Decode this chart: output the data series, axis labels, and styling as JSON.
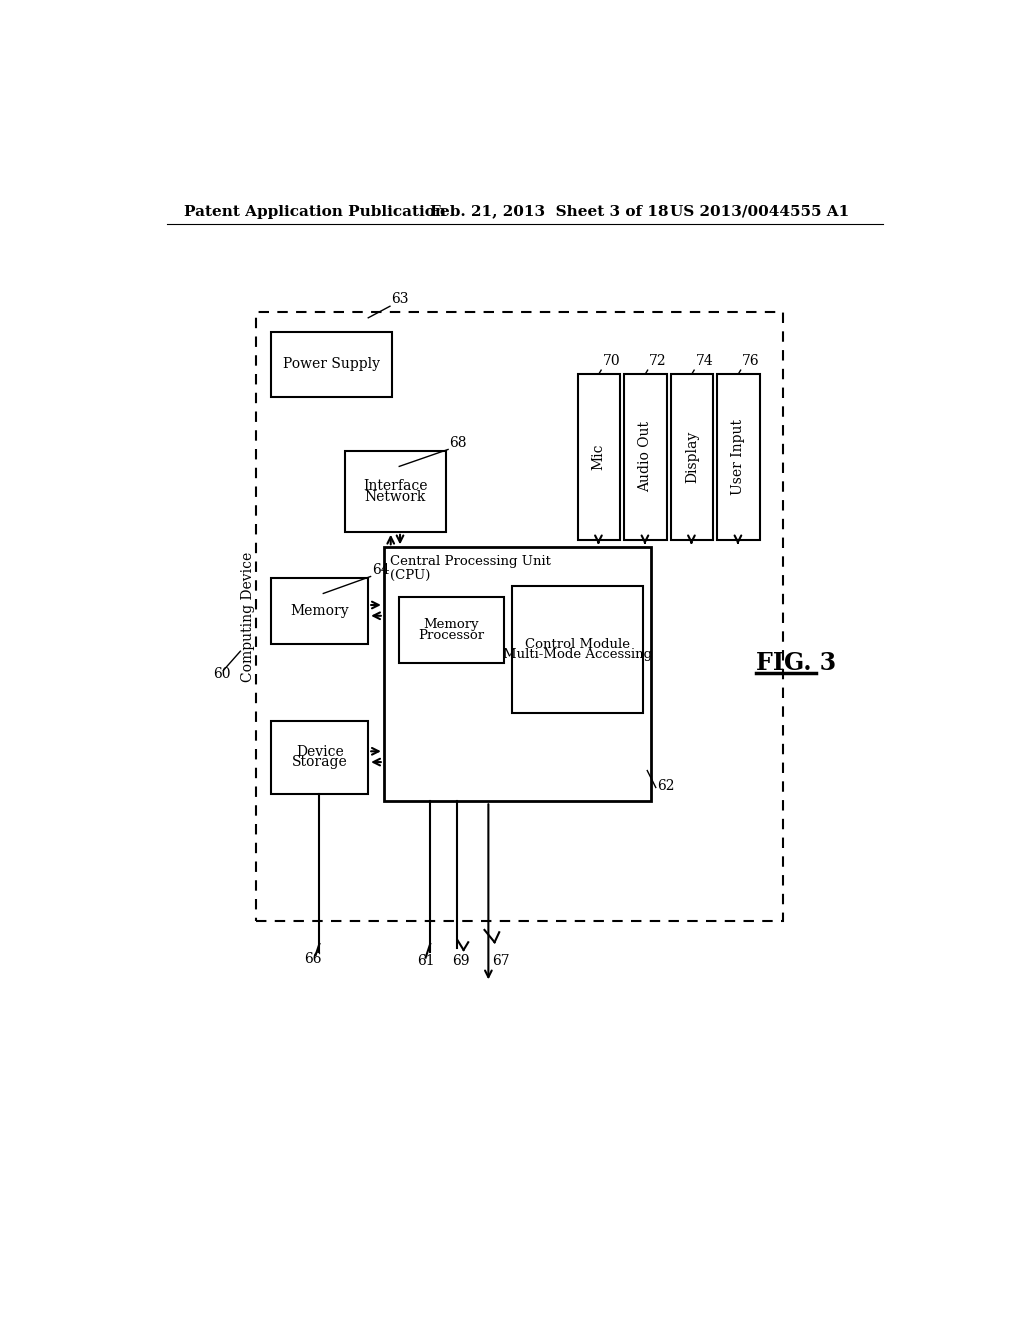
{
  "bg_color": "#ffffff",
  "header_left": "Patent Application Publication",
  "header_mid": "Feb. 21, 2013  Sheet 3 of 18",
  "header_right": "US 2013/0044555 A1",
  "fig_label": "FIG. 3"
}
